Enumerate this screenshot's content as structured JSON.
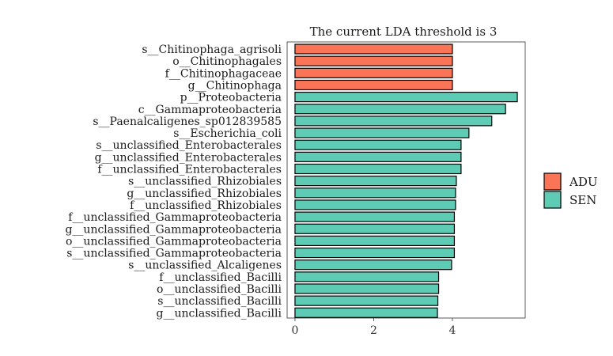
{
  "chart_data": {
    "type": "bar",
    "orientation": "horizontal",
    "title": "The current LDA threshold is 3",
    "xlabel": "",
    "ylabel": "",
    "xlim": [
      -0.2,
      5.85
    ],
    "xticks": [
      0,
      2,
      4
    ],
    "grid": false,
    "legend_position": "right",
    "legend": [
      {
        "name": "ADU",
        "color": "#FA7458"
      },
      {
        "name": "SEN",
        "color": "#5ECCB5"
      }
    ],
    "categories": [
      "s__Chitinophaga_agrisoli",
      "o__Chitinophagales",
      "f__Chitinophagaceae",
      "g__Chitinophaga",
      "p__Proteobacteria",
      "c__Gammaproteobacteria",
      "s__Paenalcaligenes_sp012839585",
      "s__Escherichia_coli",
      "s__unclassified_Enterobacterales",
      "g__unclassified_Enterobacterales",
      "f__unclassified_Enterobacterales",
      "s__unclassified_Rhizobiales",
      "g__unclassified_Rhizobiales",
      "f__unclassified_Rhizobiales",
      "f__unclassified_Gammaproteobacteria",
      "g__unclassified_Gammaproteobacteria",
      "o__unclassified_Gammaproteobacteria",
      "s__unclassified_Gammaproteobacteria",
      "s__unclassified_Alcaligenes",
      "f__unclassified_Bacilli",
      "o__unclassified_Bacilli",
      "s__unclassified_Bacilli",
      "g__unclassified_Bacilli"
    ],
    "values": [
      4.0,
      4.0,
      4.0,
      4.0,
      5.65,
      5.35,
      5.0,
      4.42,
      4.22,
      4.22,
      4.22,
      4.1,
      4.08,
      4.08,
      4.05,
      4.05,
      4.05,
      4.05,
      3.98,
      3.65,
      3.65,
      3.63,
      3.62
    ],
    "groups": [
      "ADU",
      "ADU",
      "ADU",
      "ADU",
      "SEN",
      "SEN",
      "SEN",
      "SEN",
      "SEN",
      "SEN",
      "SEN",
      "SEN",
      "SEN",
      "SEN",
      "SEN",
      "SEN",
      "SEN",
      "SEN",
      "SEN",
      "SEN",
      "SEN",
      "SEN",
      "SEN"
    ]
  }
}
